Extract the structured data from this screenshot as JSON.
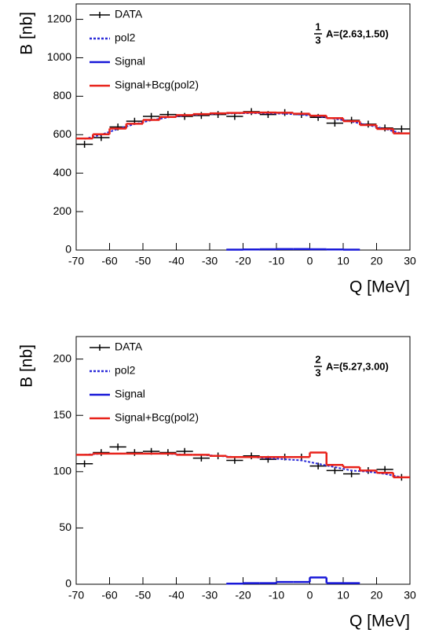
{
  "chart_data": [
    {
      "type": "histogram",
      "bins": [
        -70,
        -65,
        -60,
        -55,
        -50,
        -45,
        -40,
        -35,
        -30,
        -25,
        -20,
        -15,
        -10,
        -5,
        0,
        5,
        10,
        15,
        20,
        25,
        30
      ],
      "xlabel": "Q [MeV]",
      "ylabel": "B [nb]",
      "annotation": {
        "numerator": "1",
        "denominator": "3",
        "text": "A=(2.63,1.50)"
      },
      "xlim": [
        -70,
        30
      ],
      "xticks": [
        -70,
        -60,
        -50,
        -40,
        -30,
        -20,
        -10,
        0,
        10,
        20,
        30
      ],
      "ylim": [
        0,
        1280
      ],
      "yticks": [
        0,
        200,
        400,
        600,
        800,
        1000,
        1200
      ],
      "series": [
        {
          "name": "DATA",
          "color": "#000000",
          "style": "points",
          "values": [
            550,
            585,
            640,
            670,
            695,
            705,
            695,
            700,
            705,
            695,
            720,
            705,
            715,
            705,
            690,
            660,
            675,
            655,
            635,
            630
          ],
          "errors": [
            18,
            18,
            18,
            18,
            18,
            18,
            18,
            18,
            18,
            18,
            18,
            18,
            18,
            18,
            18,
            18,
            18,
            18,
            18,
            18
          ]
        },
        {
          "name": "pol2",
          "color": "#2a2ad8",
          "style": "dashed",
          "values": [
            578,
            600,
            630,
            655,
            675,
            690,
            700,
            705,
            709,
            711,
            712,
            711,
            709,
            704,
            695,
            683,
            668,
            650,
            630,
            607
          ]
        },
        {
          "name": "Signal",
          "color": "#1818d8",
          "style": "step",
          "values": [
            null,
            null,
            null,
            null,
            null,
            null,
            null,
            null,
            null,
            2,
            3,
            4,
            5,
            5,
            4,
            3,
            2,
            null,
            null,
            null
          ]
        },
        {
          "name": "Signal+Bcg(pol2)",
          "color": "#e8221a",
          "style": "step",
          "values": [
            580,
            602,
            632,
            657,
            677,
            692,
            702,
            707,
            711,
            713,
            715,
            715,
            714,
            709,
            699,
            686,
            670,
            650,
            630,
            607
          ]
        }
      ]
    },
    {
      "type": "histogram",
      "bins": [
        -70,
        -65,
        -60,
        -55,
        -50,
        -45,
        -40,
        -35,
        -30,
        -25,
        -20,
        -15,
        -10,
        -5,
        0,
        5,
        10,
        15,
        20,
        25,
        30
      ],
      "xlabel": "Q [MeV]",
      "ylabel": "B [nb]",
      "annotation": {
        "numerator": "2",
        "denominator": "3",
        "text": "A=(5.27,3.00)"
      },
      "xlim": [
        -70,
        30
      ],
      "xticks": [
        -70,
        -60,
        -50,
        -40,
        -30,
        -20,
        -10,
        0,
        10,
        20,
        30
      ],
      "ylim": [
        0,
        220
      ],
      "yticks": [
        0,
        50,
        100,
        150,
        200
      ],
      "series": [
        {
          "name": "DATA",
          "color": "#000000",
          "style": "points",
          "values": [
            107,
            117,
            122,
            117,
            118,
            117,
            118,
            112,
            114,
            110,
            114,
            111,
            113,
            113,
            105,
            101,
            98,
            101,
            102,
            95
          ],
          "errors": [
            3,
            3,
            3,
            3,
            3,
            3,
            3,
            3,
            3,
            3,
            3,
            3,
            3,
            3,
            3,
            3,
            3,
            3,
            3,
            3
          ]
        },
        {
          "name": "pol2",
          "color": "#2a2ad8",
          "style": "dashed",
          "values": [
            115,
            116,
            116,
            116,
            116,
            116,
            115,
            115,
            114,
            113,
            113,
            112,
            111,
            110,
            107,
            104,
            101,
            100,
            98,
            95
          ]
        },
        {
          "name": "Signal",
          "color": "#1818d8",
          "style": "step",
          "values": [
            null,
            null,
            null,
            null,
            null,
            null,
            null,
            null,
            null,
            0.5,
            1,
            1,
            2,
            2,
            6,
            1,
            1,
            null,
            null,
            null
          ]
        },
        {
          "name": "Signal+Bcg(pol2)",
          "color": "#e8221a",
          "style": "step",
          "values": [
            115,
            116,
            116,
            116,
            116,
            116,
            115,
            115,
            114,
            113,
            113,
            113,
            113,
            113,
            117,
            106,
            104,
            101,
            99,
            95
          ]
        }
      ]
    }
  ]
}
